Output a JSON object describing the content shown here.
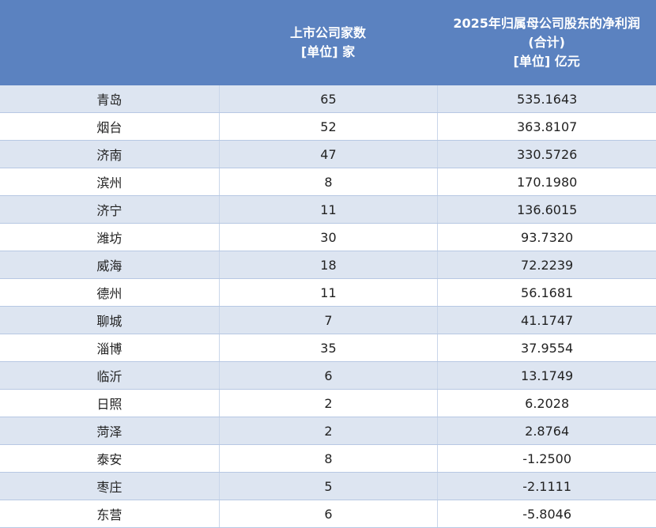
{
  "table": {
    "header": [
      [],
      [
        "上市公司家数",
        "[单位] 家"
      ],
      [
        "2025年归属母公司股东的净利润",
        "(合计)",
        "[单位] 亿元"
      ]
    ],
    "rows": [
      [
        "青岛",
        "65",
        "535.1643"
      ],
      [
        "烟台",
        "52",
        "363.8107"
      ],
      [
        "济南",
        "47",
        "330.5726"
      ],
      [
        "滨州",
        "8",
        "170.1980"
      ],
      [
        "济宁",
        "11",
        "136.6015"
      ],
      [
        "潍坊",
        "30",
        "93.7320"
      ],
      [
        "威海",
        "18",
        "72.2239"
      ],
      [
        "德州",
        "11",
        "56.1681"
      ],
      [
        "聊城",
        "7",
        "41.1747"
      ],
      [
        "淄博",
        "35",
        "37.9554"
      ],
      [
        "临沂",
        "6",
        "13.1749"
      ],
      [
        "日照",
        "2",
        "6.2028"
      ],
      [
        "菏泽",
        "2",
        "2.8764"
      ],
      [
        "泰安",
        "8",
        "-1.2500"
      ],
      [
        "枣庄",
        "5",
        "-2.1111"
      ],
      [
        "东营",
        "6",
        "-5.8046"
      ]
    ]
  }
}
